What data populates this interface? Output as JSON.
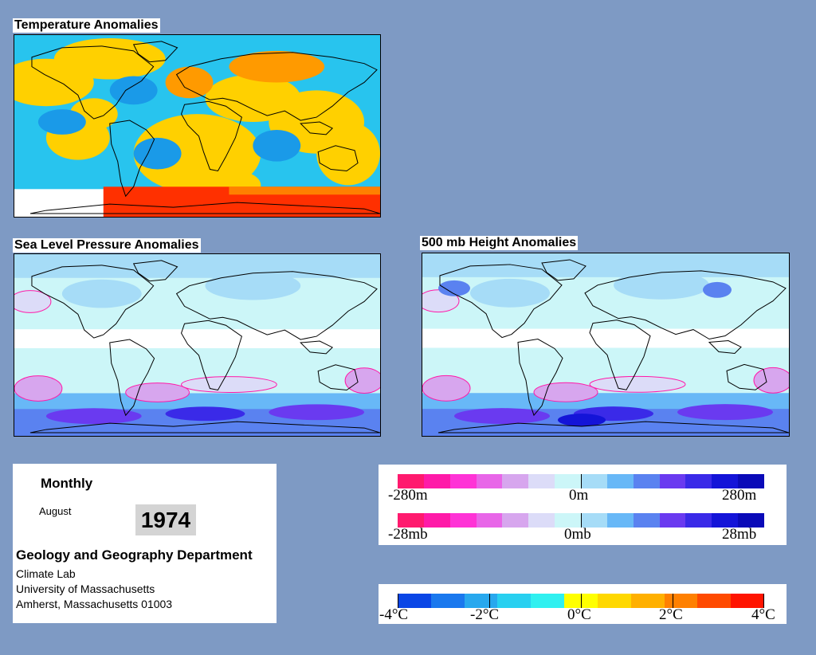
{
  "panels": {
    "temperature": {
      "title": "Temperature Anomalies"
    },
    "pressure": {
      "title": "Sea Level Pressure Anomalies"
    },
    "height": {
      "title": "500 mb Height Anomalies"
    }
  },
  "info": {
    "period": "Monthly",
    "month": "August",
    "year": "1974",
    "department": "Geology and Geography Department",
    "lines": [
      "Climate Lab",
      "University of Massachusetts",
      "Amherst, Massachusetts 01003"
    ]
  },
  "legends": {
    "height": {
      "labels": [
        "-280m",
        "0m",
        "280m"
      ]
    },
    "pressure": {
      "labels": [
        "-28mb",
        "0mb",
        "28mb"
      ]
    },
    "temperature": {
      "labels": [
        "-4°C",
        "-2°C",
        "0°C",
        "2°C",
        "4°C"
      ]
    }
  },
  "colors": {
    "background": "#7e9ac4",
    "anomaly_scale": [
      "#ff1a6e",
      "#ff1aa8",
      "#ff33d6",
      "#e866e8",
      "#d7a6ee",
      "#dcdcf8",
      "#ccf6f8",
      "#a6dcf7",
      "#68b8f7",
      "#5a82f0",
      "#6a3af0",
      "#3a2ae8",
      "#1414d8",
      "#0a0ab8"
    ],
    "temperature_scale": [
      "#0a46e6",
      "#1a78ee",
      "#28a8ee",
      "#28d0f0",
      "#30f0f0",
      "#ffff00",
      "#ffd800",
      "#ffb000",
      "#ff8000",
      "#ff4a00",
      "#ff1400"
    ]
  }
}
